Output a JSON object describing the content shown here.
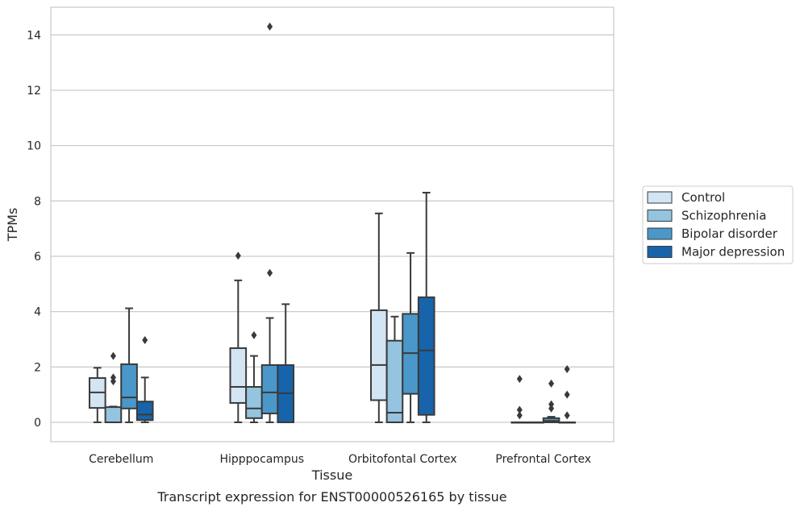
{
  "caption": "Transcript expression for ENST00000526165 by tissue",
  "chart_data": {
    "type": "box",
    "xlabel": "Tissue",
    "ylabel": "TPMs",
    "ylim": [
      -0.7,
      15.0
    ],
    "yticks": [
      0,
      2,
      4,
      6,
      8,
      10,
      12,
      14
    ],
    "ytick_labels": [
      "0",
      "2",
      "4",
      "6",
      "8",
      "10",
      "12",
      "14"
    ],
    "grid": "horizontal",
    "legend_position": "right",
    "categories": [
      "Cerebellum",
      "Hipppocampus",
      "Orbitofontal Cortex",
      "Prefrontal Cortex"
    ],
    "series": [
      {
        "name": "Control",
        "color": "#d3e4f3",
        "boxes": [
          {
            "whisker_low": 0.0,
            "q1": 0.52,
            "median": 1.08,
            "q3": 1.6,
            "whisker_high": 1.97,
            "outliers": []
          },
          {
            "whisker_low": 0.0,
            "q1": 0.7,
            "median": 1.28,
            "q3": 2.68,
            "whisker_high": 5.13,
            "outliers": [
              6.02
            ]
          },
          {
            "whisker_low": 0.0,
            "q1": 0.8,
            "median": 2.07,
            "q3": 4.05,
            "whisker_high": 7.55,
            "outliers": []
          },
          {
            "whisker_low": 0.0,
            "q1": 0.0,
            "median": 0.0,
            "q3": 0.0,
            "whisker_high": 0.0,
            "outliers": [
              0.25,
              0.45,
              1.57
            ]
          }
        ]
      },
      {
        "name": "Schizophrenia",
        "color": "#94c4df",
        "boxes": [
          {
            "whisker_low": 0.0,
            "q1": 0.0,
            "median": 0.0,
            "q3": 0.55,
            "whisker_high": 0.57,
            "outliers": [
              1.48,
              1.62,
              2.4
            ]
          },
          {
            "whisker_low": 0.0,
            "q1": 0.15,
            "median": 0.5,
            "q3": 1.28,
            "whisker_high": 2.4,
            "outliers": [
              3.15
            ]
          },
          {
            "whisker_low": 0.0,
            "q1": 0.0,
            "median": 0.35,
            "q3": 2.95,
            "whisker_high": 3.82,
            "outliers": []
          },
          {
            "whisker_low": 0.0,
            "q1": 0.0,
            "median": 0.0,
            "q3": 0.0,
            "whisker_high": 0.0,
            "outliers": []
          }
        ]
      },
      {
        "name": "Bipolar disorder",
        "color": "#4a98c9",
        "boxes": [
          {
            "whisker_low": 0.0,
            "q1": 0.5,
            "median": 0.9,
            "q3": 2.1,
            "whisker_high": 4.12,
            "outliers": []
          },
          {
            "whisker_low": 0.0,
            "q1": 0.32,
            "median": 1.08,
            "q3": 2.07,
            "whisker_high": 3.77,
            "outliers": [
              5.4,
              14.3
            ]
          },
          {
            "whisker_low": 0.0,
            "q1": 1.03,
            "median": 2.5,
            "q3": 3.92,
            "whisker_high": 6.12,
            "outliers": []
          },
          {
            "whisker_low": 0.0,
            "q1": 0.0,
            "median": 0.05,
            "q3": 0.15,
            "whisker_high": 0.2,
            "outliers": [
              0.5,
              0.65,
              1.4
            ]
          }
        ]
      },
      {
        "name": "Major depression",
        "color": "#1764ab",
        "boxes": [
          {
            "whisker_low": 0.0,
            "q1": 0.08,
            "median": 0.28,
            "q3": 0.75,
            "whisker_high": 1.62,
            "outliers": [
              2.97
            ]
          },
          {
            "whisker_low": 0.0,
            "q1": 0.0,
            "median": 1.05,
            "q3": 2.07,
            "whisker_high": 4.27,
            "outliers": []
          },
          {
            "whisker_low": 0.0,
            "q1": 0.27,
            "median": 2.6,
            "q3": 4.52,
            "whisker_high": 8.3,
            "outliers": []
          },
          {
            "whisker_low": 0.0,
            "q1": 0.0,
            "median": 0.0,
            "q3": 0.0,
            "whisker_high": 0.0,
            "outliers": [
              0.25,
              1.0,
              1.92
            ]
          }
        ]
      }
    ]
  }
}
